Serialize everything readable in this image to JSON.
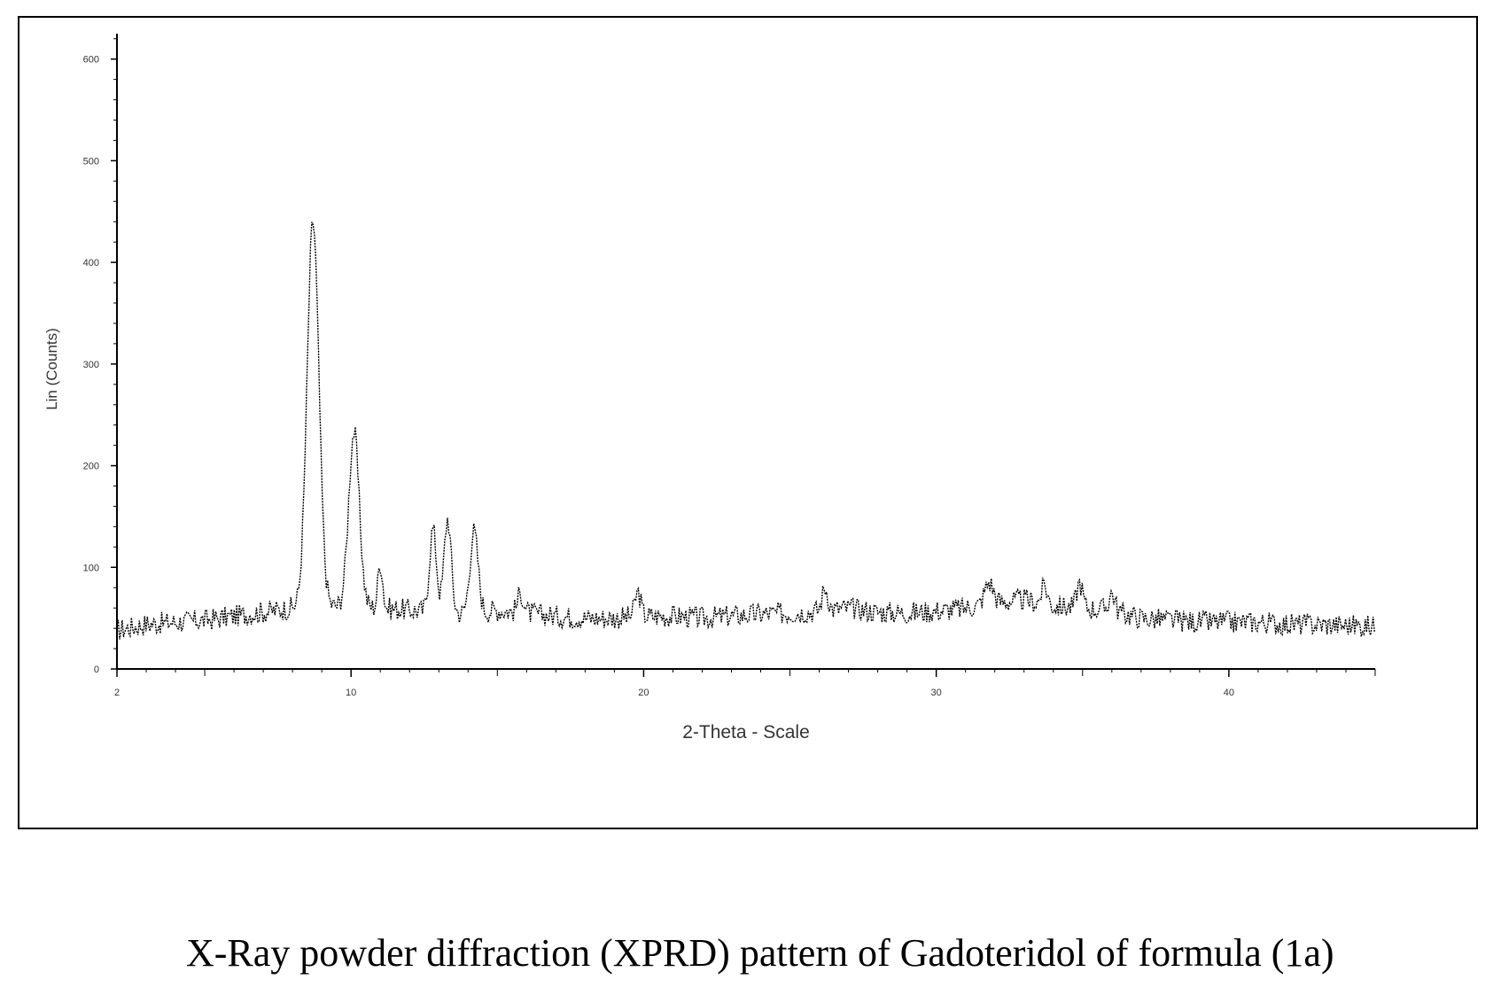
{
  "caption": "X-Ray powder diffraction (XPRD) pattern of Gadoteridol of formula (1a)",
  "chart_data": {
    "type": "line",
    "xlabel": "2-Theta - Scale",
    "ylabel": "Lin (Counts)",
    "xlim": [
      2,
      45
    ],
    "ylim": [
      0,
      625
    ],
    "x_ticks": [
      2,
      10,
      20,
      30,
      40
    ],
    "y_ticks": [
      0,
      100,
      200,
      300,
      400,
      500,
      600
    ],
    "x_tick_labels": [
      "2",
      "10",
      "20",
      "30",
      "40"
    ],
    "y_tick_labels": [
      "0",
      "100",
      "200",
      "300",
      "400",
      "500",
      "600"
    ],
    "grid": false,
    "legend": "none",
    "line_color": "#000000",
    "baseline": [
      [
        2.0,
        38
      ],
      [
        3.0,
        44
      ],
      [
        4.0,
        46
      ],
      [
        5.0,
        48
      ],
      [
        6.0,
        52
      ],
      [
        7.0,
        56
      ],
      [
        8.0,
        60
      ],
      [
        10.0,
        62
      ],
      [
        11.0,
        60
      ],
      [
        12.0,
        58
      ],
      [
        13.0,
        56
      ],
      [
        14.0,
        54
      ],
      [
        15.0,
        58
      ],
      [
        16.0,
        55
      ],
      [
        17.0,
        52
      ],
      [
        18.0,
        50
      ],
      [
        19.0,
        50
      ],
      [
        20.0,
        52
      ],
      [
        21.0,
        52
      ],
      [
        22.0,
        50
      ],
      [
        23.0,
        52
      ],
      [
        24.0,
        54
      ],
      [
        25.0,
        55
      ],
      [
        26.0,
        57
      ],
      [
        27.0,
        60
      ],
      [
        28.0,
        56
      ],
      [
        29.0,
        55
      ],
      [
        30.0,
        57
      ],
      [
        31.0,
        60
      ],
      [
        32.0,
        65
      ],
      [
        33.0,
        68
      ],
      [
        34.0,
        62
      ],
      [
        35.0,
        60
      ],
      [
        36.0,
        58
      ],
      [
        37.0,
        50
      ],
      [
        38.0,
        48
      ],
      [
        39.0,
        46
      ],
      [
        40.0,
        46
      ],
      [
        41.0,
        46
      ],
      [
        42.0,
        44
      ],
      [
        43.0,
        44
      ],
      [
        44.0,
        43
      ],
      [
        45.0,
        42
      ]
    ],
    "peaks": [
      {
        "x": 8.7,
        "y": 440,
        "width": 0.2
      },
      {
        "x": 10.1,
        "y": 233,
        "width": 0.18
      },
      {
        "x": 11.0,
        "y": 105,
        "width": 0.08
      },
      {
        "x": 12.8,
        "y": 138,
        "width": 0.12
      },
      {
        "x": 13.3,
        "y": 148,
        "width": 0.12
      },
      {
        "x": 14.2,
        "y": 135,
        "width": 0.14
      },
      {
        "x": 15.8,
        "y": 75,
        "width": 0.1
      },
      {
        "x": 19.8,
        "y": 75,
        "width": 0.1
      },
      {
        "x": 26.2,
        "y": 80,
        "width": 0.1
      },
      {
        "x": 31.8,
        "y": 85,
        "width": 0.15
      },
      {
        "x": 33.7,
        "y": 82,
        "width": 0.1
      },
      {
        "x": 34.9,
        "y": 85,
        "width": 0.1
      },
      {
        "x": 36.0,
        "y": 75,
        "width": 0.1
      }
    ],
    "noise_amplitude": 11
  }
}
